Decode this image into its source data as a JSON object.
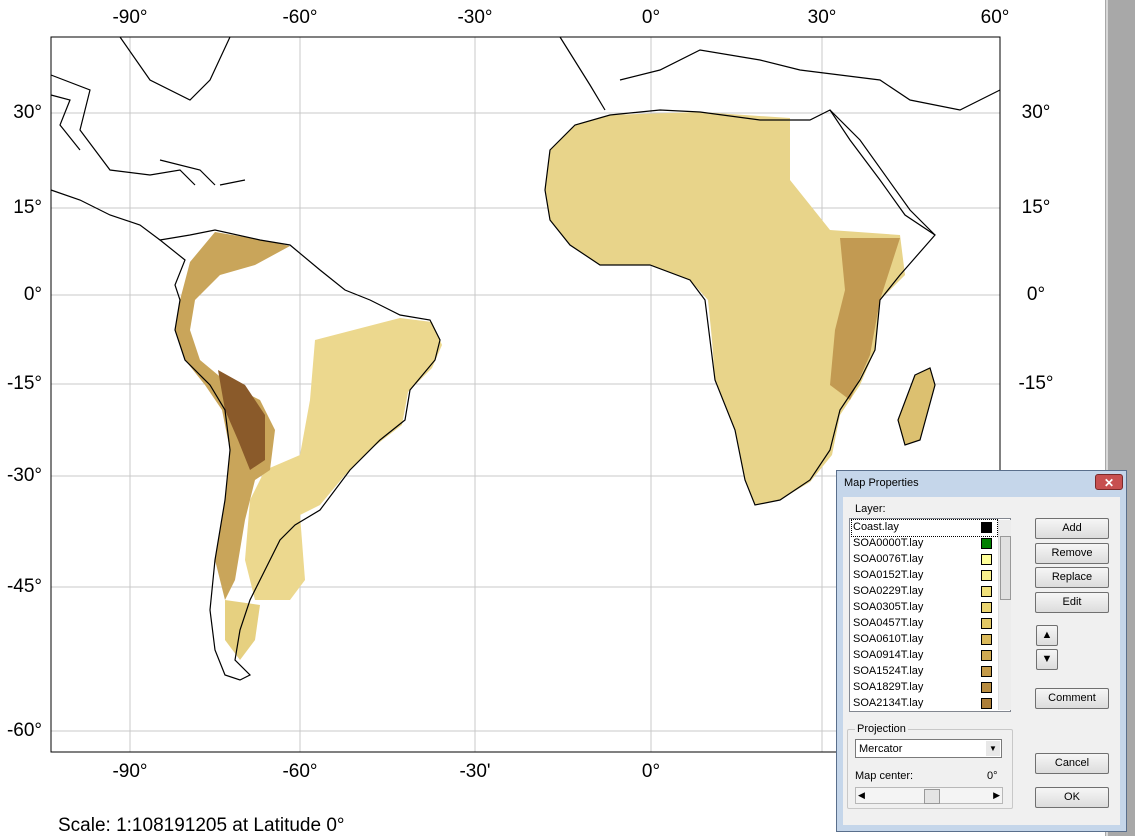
{
  "map": {
    "top_lon_labels": [
      "-90°",
      "-60°",
      "-30°",
      "0°",
      "30°",
      "60°"
    ],
    "bottom_lon_labels": [
      "-90°",
      "-60°",
      "-30'",
      "0°"
    ],
    "left_lat_labels": [
      "30°",
      "15°",
      "0°",
      "-15°",
      "-30°",
      "-45°",
      "-60°"
    ],
    "right_lat_labels": [
      "30°",
      "15°",
      "0°",
      "-15°"
    ],
    "scale_text": "Scale:  1:108191205 at Latitude 0°"
  },
  "dialog": {
    "title": "Map Properties",
    "layer_label": "Layer:",
    "layers": [
      {
        "name": "Coast.lay",
        "color": "#000000"
      },
      {
        "name": "SOA0000T.lay",
        "color": "#008000"
      },
      {
        "name": "SOA0076T.lay",
        "color": "#ffff99"
      },
      {
        "name": "SOA0152T.lay",
        "color": "#f8ef8c"
      },
      {
        "name": "SOA0229T.lay",
        "color": "#f0e07a"
      },
      {
        "name": "SOA0305T.lay",
        "color": "#ead470"
      },
      {
        "name": "SOA0457T.lay",
        "color": "#e2c865"
      },
      {
        "name": "SOA0610T.lay",
        "color": "#dab95a"
      },
      {
        "name": "SOA0914T.lay",
        "color": "#d0aa52"
      },
      {
        "name": "SOA1524T.lay",
        "color": "#c49a48"
      },
      {
        "name": "SOA1829T.lay",
        "color": "#b88c40"
      },
      {
        "name": "SOA2134T.lay",
        "color": "#ac7e38"
      }
    ],
    "buttons": {
      "add": "Add",
      "remove": "Remove",
      "replace": "Replace",
      "edit": "Edit",
      "comment": "Comment",
      "cancel": "Cancel",
      "ok": "OK"
    },
    "projection": {
      "label": "Projection",
      "selected": "Mercator",
      "map_center_label": "Map center:",
      "map_center_value": "0°"
    }
  }
}
